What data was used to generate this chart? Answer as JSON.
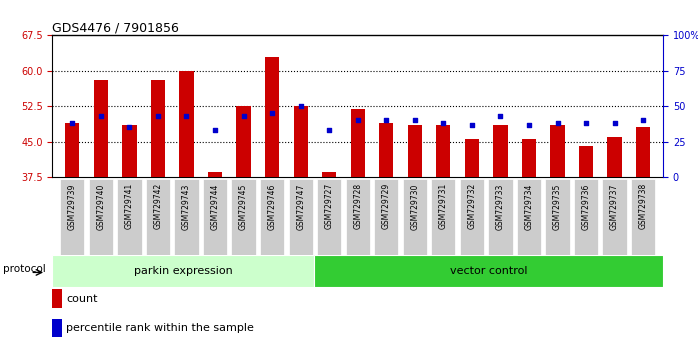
{
  "title": "GDS4476 / 7901856",
  "samples": [
    "GSM729739",
    "GSM729740",
    "GSM729741",
    "GSM729742",
    "GSM729743",
    "GSM729744",
    "GSM729745",
    "GSM729746",
    "GSM729747",
    "GSM729727",
    "GSM729728",
    "GSM729729",
    "GSM729730",
    "GSM729731",
    "GSM729732",
    "GSM729733",
    "GSM729734",
    "GSM729735",
    "GSM729736",
    "GSM729737",
    "GSM729738"
  ],
  "bar_values": [
    49.0,
    58.0,
    48.5,
    58.0,
    60.0,
    38.5,
    52.5,
    63.0,
    52.5,
    38.5,
    52.0,
    49.0,
    48.5,
    48.5,
    45.5,
    48.5,
    45.5,
    48.5,
    44.0,
    46.0,
    48.0
  ],
  "blue_values": [
    49.0,
    50.5,
    48.0,
    50.5,
    50.5,
    47.5,
    50.5,
    51.0,
    52.5,
    47.5,
    49.5,
    49.5,
    49.5,
    49.0,
    48.5,
    50.5,
    48.5,
    49.0,
    49.0,
    49.0,
    49.5
  ],
  "ylim_left": [
    37.5,
    67.5
  ],
  "ylim_right": [
    0,
    100
  ],
  "yticks_left": [
    37.5,
    45.0,
    52.5,
    60.0,
    67.5
  ],
  "yticks_right": [
    0,
    25,
    50,
    75,
    100
  ],
  "bar_color": "#cc0000",
  "blue_color": "#0000cc",
  "parkin_count": 9,
  "vector_count": 12,
  "parkin_label": "parkin expression",
  "vector_label": "vector control",
  "protocol_label": "protocol",
  "legend_count": "count",
  "legend_percentile": "percentile rank within the sample",
  "bg_plot": "#ffffff",
  "bg_label_parkin": "#ccffcc",
  "bg_label_vector": "#33cc33",
  "tick_label_color_left": "#cc0000",
  "tick_label_color_right": "#0000cc",
  "xticklabel_bg": "#cccccc"
}
